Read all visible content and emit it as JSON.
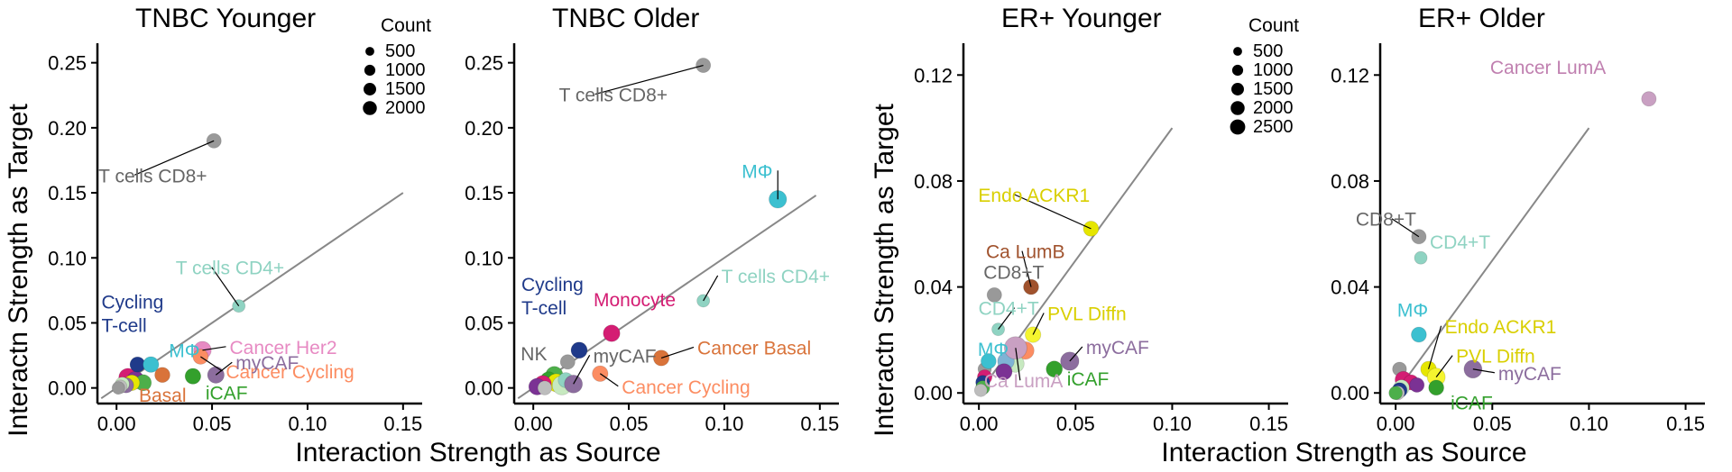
{
  "figure": {
    "ylabel_tnbc": "Interactn Strength as Target",
    "ylabel_er": "Interactn Strength as Target",
    "xlabel_tnbc": "Interaction Strength as Source",
    "xlabel_er": "Interaction Strength as Source"
  },
  "legends": [
    {
      "title": "Count",
      "entries": [
        "500",
        "1000",
        "1500",
        "2000"
      ]
    },
    {
      "title": "Count",
      "entries": [
        "500",
        "1000",
        "1500",
        "2000",
        "2500"
      ]
    }
  ],
  "chart_data": [
    {
      "type": "scatter",
      "title": "TNBC Younger",
      "xlim": [
        -0.01,
        0.16
      ],
      "ylim": [
        -0.012,
        0.265
      ],
      "xticks": [
        "0.00",
        "0.05",
        "0.10",
        "0.15"
      ],
      "yticks": [
        "0.00",
        "0.05",
        "0.10",
        "0.15",
        "0.20",
        "0.25"
      ],
      "xtick_values": [
        0,
        0.05,
        0.1,
        0.15
      ],
      "ytick_values": [
        0,
        0.05,
        0.1,
        0.15,
        0.2,
        0.25
      ],
      "diagonal": [
        [
          -0.008,
          -0.008
        ],
        [
          0.15,
          0.15
        ]
      ],
      "points": [
        {
          "label": "T cells CD8+",
          "x": 0.051,
          "y": 0.19,
          "size": 800,
          "color": "#999999",
          "label_color": "#666666"
        },
        {
          "label": "T cells CD4+",
          "x": 0.064,
          "y": 0.063,
          "size": 500,
          "color": "#8fd3c2",
          "label_color": "#8fd3c2"
        },
        {
          "label": "Cancer Her2",
          "x": 0.045,
          "y": 0.029,
          "size": 1400,
          "color": "#e78ac3",
          "label_color": "#e78ac3"
        },
        {
          "label": "Cancer Cycling",
          "x": 0.044,
          "y": 0.024,
          "size": 900,
          "color": "#fc8d62",
          "label_color": "#fc8d62"
        },
        {
          "label": "myCAF",
          "x": 0.052,
          "y": 0.01,
          "size": 1200,
          "color": "#8c6d9e",
          "label_color": "#8c6d9e"
        },
        {
          "label": "iCAF",
          "x": 0.04,
          "y": 0.009,
          "size": 1000,
          "color": "#33a02c",
          "label_color": "#33a02c"
        },
        {
          "label": "Basal",
          "x": 0.024,
          "y": 0.01,
          "size": 900,
          "color": "#d9733a",
          "label_color": "#d9733a"
        },
        {
          "label": "Cycling T-cell",
          "x": 0.011,
          "y": 0.018,
          "size": 900,
          "color": "#1f3a8a",
          "label_color": "#1f3a8a"
        },
        {
          "label": "MΦ",
          "x": 0.018,
          "y": 0.018,
          "size": 1000,
          "color": "#3cc0d0",
          "label_color": "#3cc0d0"
        },
        {
          "label": "",
          "x": 0.006,
          "y": 0.008,
          "size": 1600,
          "color": "#d41d73",
          "label_color": ""
        },
        {
          "label": "",
          "x": 0.01,
          "y": 0.006,
          "size": 1400,
          "color": "#7b3294",
          "label_color": ""
        },
        {
          "label": "",
          "x": 0.014,
          "y": 0.004,
          "size": 1100,
          "color": "#4daf4a",
          "label_color": ""
        },
        {
          "label": "",
          "x": 0.008,
          "y": 0.004,
          "size": 1000,
          "color": "#e6e600",
          "label_color": ""
        },
        {
          "label": "",
          "x": 0.005,
          "y": 0.002,
          "size": 900,
          "color": "#8c6d9e",
          "label_color": ""
        },
        {
          "label": "",
          "x": 0.003,
          "y": 0.003,
          "size": 700,
          "color": "#c7e9c0",
          "label_color": ""
        },
        {
          "label": "",
          "x": 0.002,
          "y": 0.001,
          "size": 600,
          "color": "#bdbdbd",
          "label_color": ""
        },
        {
          "label": "",
          "x": 0.001,
          "y": 0.0,
          "size": 500,
          "color": "#999999",
          "label_color": ""
        }
      ]
    },
    {
      "type": "scatter",
      "title": "TNBC Older",
      "xlim": [
        -0.01,
        0.16
      ],
      "ylim": [
        -0.012,
        0.265
      ],
      "xticks": [
        "0.00",
        "0.05",
        "0.10",
        "0.15"
      ],
      "yticks": [
        "0.00",
        "0.05",
        "0.10",
        "0.15",
        "0.20",
        "0.25"
      ],
      "xtick_values": [
        0,
        0.05,
        0.1,
        0.15
      ],
      "ytick_values": [
        0,
        0.05,
        0.1,
        0.15,
        0.2,
        0.25
      ],
      "diagonal": [
        [
          -0.008,
          -0.008
        ],
        [
          0.148,
          0.148
        ]
      ],
      "points": [
        {
          "label": "T cells CD8+",
          "x": 0.089,
          "y": 0.248,
          "size": 800,
          "color": "#999999",
          "label_color": "#666666"
        },
        {
          "label": "MΦ",
          "x": 0.128,
          "y": 0.145,
          "size": 1400,
          "color": "#3cc0d0",
          "label_color": "#3cc0d0"
        },
        {
          "label": "T cells CD4+",
          "x": 0.089,
          "y": 0.067,
          "size": 500,
          "color": "#8fd3c2",
          "label_color": "#8fd3c2"
        },
        {
          "label": "Cancer Basal",
          "x": 0.067,
          "y": 0.023,
          "size": 1000,
          "color": "#d9733a",
          "label_color": "#d9733a"
        },
        {
          "label": "Cancer Cycling",
          "x": 0.035,
          "y": 0.011,
          "size": 1000,
          "color": "#fc8d62",
          "label_color": "#fc8d62"
        },
        {
          "label": "Monocyte",
          "x": 0.041,
          "y": 0.042,
          "size": 1200,
          "color": "#d41d73",
          "label_color": "#d41d73"
        },
        {
          "label": "Cycling T-cell",
          "x": 0.024,
          "y": 0.029,
          "size": 1100,
          "color": "#1f3a8a",
          "label_color": "#1f3a8a"
        },
        {
          "label": "NK",
          "x": 0.018,
          "y": 0.02,
          "size": 800,
          "color": "#999999",
          "label_color": "#666666"
        },
        {
          "label": "myCAF",
          "x": 0.021,
          "y": 0.003,
          "size": 1500,
          "color": "#8c6d9e",
          "label_color": "#666666"
        },
        {
          "label": "",
          "x": 0.011,
          "y": 0.01,
          "size": 1300,
          "color": "#4daf4a",
          "label_color": ""
        },
        {
          "label": "",
          "x": 0.008,
          "y": 0.006,
          "size": 1200,
          "color": "#33a02c",
          "label_color": ""
        },
        {
          "label": "",
          "x": 0.012,
          "y": 0.004,
          "size": 1500,
          "color": "#e6e600",
          "label_color": ""
        },
        {
          "label": "",
          "x": 0.005,
          "y": 0.003,
          "size": 1300,
          "color": "#d41d73",
          "label_color": ""
        },
        {
          "label": "",
          "x": 0.002,
          "y": 0.001,
          "size": 1200,
          "color": "#7b3294",
          "label_color": ""
        },
        {
          "label": "",
          "x": 0.015,
          "y": 0.002,
          "size": 1800,
          "color": "#c7e9c0",
          "label_color": ""
        },
        {
          "label": "",
          "x": 0.017,
          "y": 0.006,
          "size": 900,
          "color": "#8fd3c2",
          "label_color": ""
        },
        {
          "label": "",
          "x": 0.006,
          "y": 0.0,
          "size": 700,
          "color": "#bdbdbd",
          "label_color": ""
        }
      ]
    },
    {
      "type": "scatter",
      "title": "ER+ Younger",
      "xlim": [
        -0.008,
        0.16
      ],
      "ylim": [
        -0.004,
        0.132
      ],
      "xticks": [
        "0.00",
        "0.05",
        "0.10",
        "0.15"
      ],
      "yticks": [
        "0.00",
        "0.04",
        "0.08",
        "0.12"
      ],
      "xtick_values": [
        0,
        0.05,
        0.1,
        0.15
      ],
      "ytick_values": [
        0,
        0.04,
        0.08,
        0.12
      ],
      "diagonal": [
        [
          0,
          0
        ],
        [
          0.1,
          0.1
        ]
      ],
      "points": [
        {
          "label": "Endo ACKR1",
          "x": 0.058,
          "y": 0.062,
          "size": 900,
          "color": "#e6e600",
          "label_color": "#d9cf00"
        },
        {
          "label": "Ca LumB",
          "x": 0.027,
          "y": 0.04,
          "size": 900,
          "color": "#a0522d",
          "label_color": "#a0522d"
        },
        {
          "label": "CD8+T",
          "x": 0.008,
          "y": 0.037,
          "size": 800,
          "color": "#999999",
          "label_color": "#666666"
        },
        {
          "label": "CD4+T",
          "x": 0.01,
          "y": 0.024,
          "size": 500,
          "color": "#8fd3c2",
          "label_color": "#8fd3c2"
        },
        {
          "label": "PVL Diffn",
          "x": 0.028,
          "y": 0.022,
          "size": 1000,
          "color": "#f5f52f",
          "label_color": "#d9cf00"
        },
        {
          "label": "myCAF",
          "x": 0.047,
          "y": 0.012,
          "size": 1600,
          "color": "#8c6d9e",
          "label_color": "#8c6d9e"
        },
        {
          "label": "iCAF",
          "x": 0.039,
          "y": 0.009,
          "size": 1100,
          "color": "#33a02c",
          "label_color": "#33a02c"
        },
        {
          "label": "MΦ",
          "x": 0.005,
          "y": 0.012,
          "size": 900,
          "color": "#3cc0d0",
          "label_color": "#3cc0d0"
        },
        {
          "label": "Ca LumA",
          "x": 0.019,
          "y": 0.017,
          "size": 2800,
          "color": "#c9a0c2",
          "label_color": "#c9a0c2"
        },
        {
          "label": "",
          "x": 0.024,
          "y": 0.016,
          "size": 1400,
          "color": "#fc8d62",
          "label_color": ""
        },
        {
          "label": "",
          "x": 0.019,
          "y": 0.011,
          "size": 1300,
          "color": "#c7e9c0",
          "label_color": ""
        },
        {
          "label": "",
          "x": 0.014,
          "y": 0.012,
          "size": 1200,
          "color": "#7fb3d5",
          "label_color": ""
        },
        {
          "label": "",
          "x": 0.013,
          "y": 0.008,
          "size": 1100,
          "color": "#7b3294",
          "label_color": ""
        },
        {
          "label": "",
          "x": 0.003,
          "y": 0.009,
          "size": 600,
          "color": "#999999",
          "label_color": ""
        },
        {
          "label": "",
          "x": 0.003,
          "y": 0.006,
          "size": 800,
          "color": "#d41d73",
          "label_color": ""
        },
        {
          "label": "",
          "x": 0.002,
          "y": 0.004,
          "size": 700,
          "color": "#1f3a8a",
          "label_color": ""
        },
        {
          "label": "",
          "x": 0.002,
          "y": 0.002,
          "size": 700,
          "color": "#4daf4a",
          "label_color": ""
        },
        {
          "label": "",
          "x": 0.001,
          "y": 0.001,
          "size": 500,
          "color": "#bdbdbd",
          "label_color": ""
        }
      ]
    },
    {
      "type": "scatter",
      "title": "ER+ Older",
      "xlim": [
        -0.008,
        0.16
      ],
      "ylim": [
        -0.004,
        0.132
      ],
      "xticks": [
        "0.00",
        "0.05",
        "0.10",
        "0.15"
      ],
      "yticks": [
        "0.00",
        "0.04",
        "0.08",
        "0.12"
      ],
      "xtick_values": [
        0,
        0.05,
        0.1,
        0.15
      ],
      "ytick_values": [
        0,
        0.04,
        0.08,
        0.12
      ],
      "diagonal": [
        [
          0,
          0
        ],
        [
          0.1,
          0.1
        ]
      ],
      "points": [
        {
          "label": "Cancer LumA",
          "x": 0.131,
          "y": 0.111,
          "size": 800,
          "color": "#c9a0c2",
          "label_color": "#c080b0"
        },
        {
          "label": "CD8+T",
          "x": 0.012,
          "y": 0.059,
          "size": 800,
          "color": "#999999",
          "label_color": "#666666"
        },
        {
          "label": "CD4+T",
          "x": 0.013,
          "y": 0.051,
          "size": 500,
          "color": "#8fd3c2",
          "label_color": "#8fd3c2"
        },
        {
          "label": "MΦ",
          "x": 0.012,
          "y": 0.022,
          "size": 900,
          "color": "#3cc0d0",
          "label_color": "#3cc0d0"
        },
        {
          "label": "Endo ACKR1",
          "x": 0.017,
          "y": 0.009,
          "size": 1000,
          "color": "#e6e600",
          "label_color": "#d9cf00"
        },
        {
          "label": "PVL Diffn",
          "x": 0.021,
          "y": 0.006,
          "size": 1500,
          "color": "#f5f52f",
          "label_color": "#d9cf00"
        },
        {
          "label": "myCAF",
          "x": 0.04,
          "y": 0.009,
          "size": 1500,
          "color": "#8c6d9e",
          "label_color": "#8c6d9e"
        },
        {
          "label": "iCAF",
          "x": 0.021,
          "y": 0.002,
          "size": 900,
          "color": "#33a02c",
          "label_color": "#33a02c"
        },
        {
          "label": "",
          "x": 0.002,
          "y": 0.009,
          "size": 700,
          "color": "#999999",
          "label_color": ""
        },
        {
          "label": "",
          "x": 0.004,
          "y": 0.005,
          "size": 1200,
          "color": "#d41d73",
          "label_color": ""
        },
        {
          "label": "",
          "x": 0.008,
          "y": 0.004,
          "size": 900,
          "color": "#d41d73",
          "label_color": ""
        },
        {
          "label": "",
          "x": 0.011,
          "y": 0.003,
          "size": 800,
          "color": "#7b3294",
          "label_color": ""
        },
        {
          "label": "",
          "x": 0.003,
          "y": 0.002,
          "size": 1000,
          "color": "#c7e9c0",
          "label_color": ""
        },
        {
          "label": "",
          "x": 0.002,
          "y": 0.001,
          "size": 900,
          "color": "#1f3a8a",
          "label_color": ""
        },
        {
          "label": "",
          "x": 0.001,
          "y": 0.0,
          "size": 700,
          "color": "#bdbdbd",
          "label_color": ""
        },
        {
          "label": "",
          "x": 0.0,
          "y": 0.0,
          "size": 600,
          "color": "#4daf4a",
          "label_color": ""
        }
      ]
    }
  ]
}
